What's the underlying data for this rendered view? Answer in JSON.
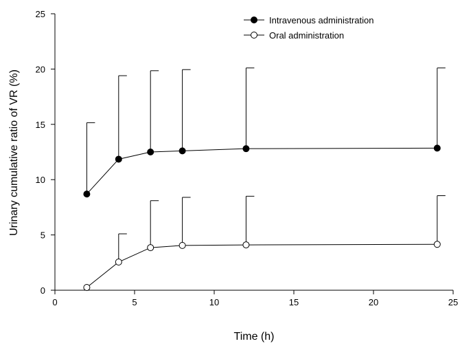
{
  "chart_data": {
    "type": "line",
    "title": "",
    "xlabel": "Time (h)",
    "ylabel": "Urinary cumulative ratio of VR (%)",
    "xlim": [
      0,
      25
    ],
    "ylim": [
      0,
      25
    ],
    "xticks": [
      0,
      5,
      10,
      15,
      20,
      25
    ],
    "yticks": [
      0,
      5,
      10,
      15,
      20,
      25
    ],
    "grid": false,
    "legend_position": "top-right",
    "series": [
      {
        "name": "Intravenous administration",
        "marker": "filled-circle",
        "x": [
          2,
          4,
          6,
          8,
          12,
          24
        ],
        "y": [
          8.7,
          11.85,
          12.5,
          12.6,
          12.8,
          12.85
        ],
        "error_upper": [
          6.45,
          7.55,
          7.35,
          7.35,
          7.3,
          7.25
        ]
      },
      {
        "name": "Oral administration",
        "marker": "open-circle",
        "x": [
          2,
          4,
          6,
          8,
          12,
          24
        ],
        "y": [
          0.25,
          2.55,
          3.85,
          4.05,
          4.1,
          4.15
        ],
        "error_upper": [
          0,
          2.55,
          4.25,
          4.35,
          4.4,
          4.4
        ]
      }
    ]
  }
}
